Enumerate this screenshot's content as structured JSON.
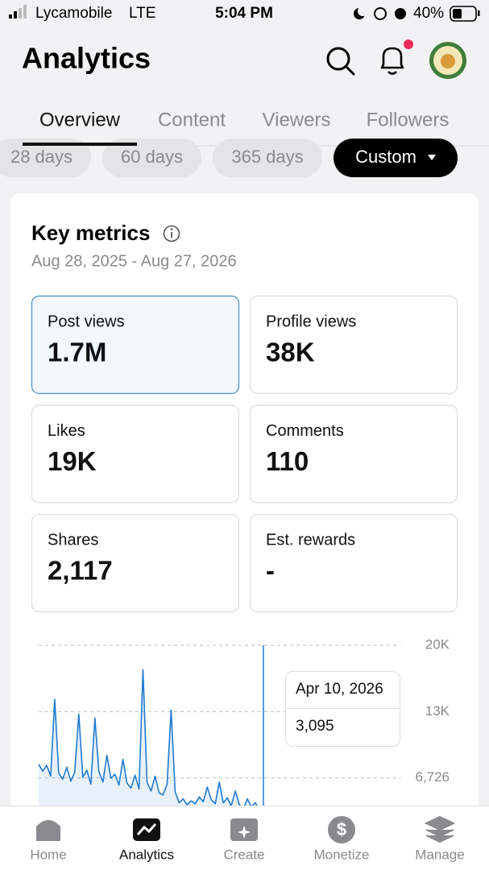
{
  "status_bar": {
    "carrier": "Lycamobile",
    "network": "LTE",
    "time": "5:04 PM",
    "battery": "40%"
  },
  "header": {
    "title": "Analytics"
  },
  "tabs": {
    "items": [
      "Overview",
      "Content",
      "Viewers",
      "Followers"
    ],
    "active": 0
  },
  "ranges": {
    "items": [
      "28 days",
      "60 days",
      "365 days",
      "Custom"
    ],
    "active": 3
  },
  "card": {
    "title": "Key metrics",
    "date_range": "Aug 28, 2025 - Aug 27, 2026",
    "metrics": [
      {
        "label": "Post views",
        "value": "1.7M"
      },
      {
        "label": "Profile views",
        "value": "38K"
      },
      {
        "label": "Likes",
        "value": "19K"
      },
      {
        "label": "Comments",
        "value": "110"
      },
      {
        "label": "Shares",
        "value": "2,117"
      },
      {
        "label": "Est. rewards",
        "value": "-"
      }
    ],
    "selected_metric": 0
  },
  "chart_data": {
    "type": "line",
    "color": "#1f7ad1",
    "ylim": [
      0,
      20178
    ],
    "yticks": [
      {
        "value": 6726,
        "label": "6,726"
      },
      {
        "value": 13452,
        "label": "13K"
      },
      {
        "value": 20178,
        "label": "20K"
      }
    ],
    "grid": true,
    "values": [
      8100,
      7400,
      8000,
      6900,
      14700,
      7200,
      6600,
      7800,
      6400,
      7300,
      13200,
      6800,
      7500,
      6100,
      12800,
      7400,
      6300,
      9000,
      6700,
      7100,
      6000,
      8600,
      6200,
      5700,
      7000,
      5600,
      17700,
      6300,
      5400,
      6900,
      5200,
      5000,
      6100,
      13600,
      5300,
      4200,
      4600,
      4000,
      4400,
      4100,
      4800,
      4300,
      5800,
      4500,
      4100,
      6300,
      4200,
      4700,
      3900,
      5400,
      4000,
      3600,
      4600,
      3800,
      4200,
      3500,
      3095
    ],
    "tooltip": {
      "date": "Apr 10, 2026",
      "value": "3,095"
    }
  },
  "nav": {
    "items": [
      "Home",
      "Analytics",
      "Create",
      "Monetize",
      "Manage"
    ],
    "active": 1
  }
}
